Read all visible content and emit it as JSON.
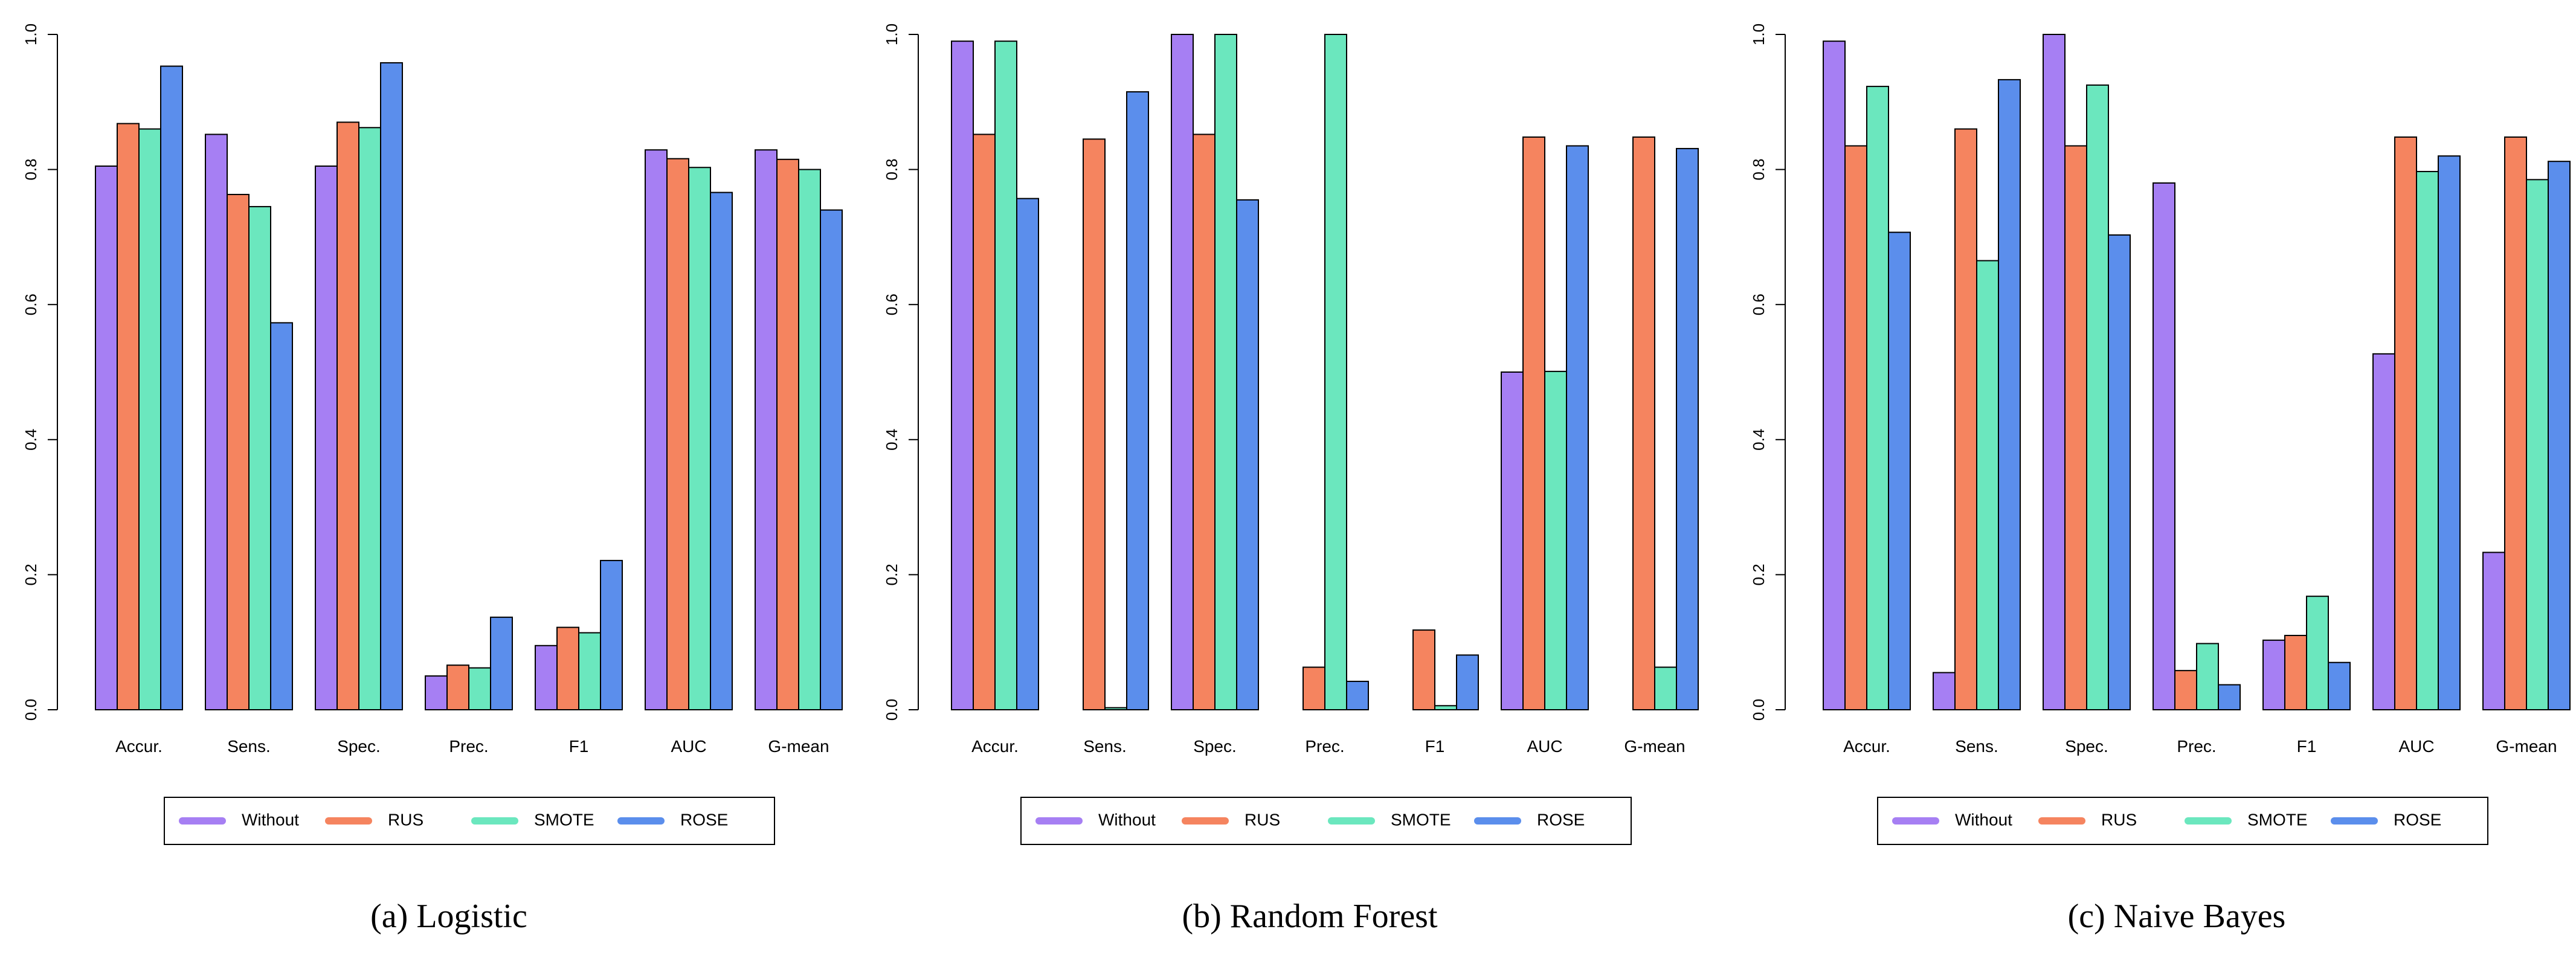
{
  "colors": {
    "Without": "#A67FF3",
    "RUS": "#F5845F",
    "SMOTE": "#6BE7BE",
    "ROSE": "#5B8EEC",
    "axis": "#000000"
  },
  "legend": [
    "Without",
    "RUS",
    "SMOTE",
    "ROSE"
  ],
  "chart_data": [
    {
      "type": "bar",
      "panel": "a",
      "caption_letter": "(a)",
      "caption_text": "Logistic",
      "categories": [
        "Accur.",
        "Sens.",
        "Spec.",
        "Prec.",
        "F1",
        "AUC",
        "G-mean"
      ],
      "ylim": [
        0,
        1
      ],
      "yticks": [
        "0.0",
        "0.2",
        "0.4",
        "0.6",
        "0.8",
        "1.0"
      ],
      "series": [
        {
          "name": "Without",
          "values": [
            0.805,
            0.852,
            0.805,
            0.05,
            0.095,
            0.829,
            0.829
          ]
        },
        {
          "name": "RUS",
          "values": [
            0.868,
            0.763,
            0.87,
            0.066,
            0.122,
            0.816,
            0.815
          ]
        },
        {
          "name": "SMOTE",
          "values": [
            0.86,
            0.745,
            0.862,
            0.062,
            0.114,
            0.803,
            0.8
          ]
        },
        {
          "name": "ROSE",
          "values": [
            0.953,
            0.573,
            0.958,
            0.137,
            0.221,
            0.766,
            0.74
          ]
        }
      ],
      "legend_position": "bottom"
    },
    {
      "type": "bar",
      "panel": "b",
      "caption_letter": "(b)",
      "caption_text": "Random Forest",
      "categories": [
        "Accur.",
        "Sens.",
        "Spec.",
        "Prec.",
        "F1",
        "AUC",
        "G-mean"
      ],
      "ylim": [
        0,
        1
      ],
      "yticks": [
        "0.0",
        "0.2",
        "0.4",
        "0.6",
        "0.8",
        "1.0"
      ],
      "series": [
        {
          "name": "Without",
          "values": [
            0.99,
            0.0,
            1.0,
            0.0,
            0.0,
            0.5,
            0.0
          ]
        },
        {
          "name": "RUS",
          "values": [
            0.852,
            0.845,
            0.852,
            0.063,
            0.118,
            0.848,
            0.848
          ]
        },
        {
          "name": "SMOTE",
          "values": [
            0.99,
            0.003,
            1.0,
            1.0,
            0.006,
            0.501,
            0.063
          ]
        },
        {
          "name": "ROSE",
          "values": [
            0.757,
            0.915,
            0.755,
            0.042,
            0.081,
            0.835,
            0.831
          ]
        }
      ],
      "legend_position": "bottom"
    },
    {
      "type": "bar",
      "panel": "c",
      "caption_letter": "(c)",
      "caption_text": "Naive Bayes",
      "categories": [
        "Accur.",
        "Sens.",
        "Spec.",
        "Prec.",
        "F1",
        "AUC",
        "G-mean"
      ],
      "ylim": [
        0,
        1
      ],
      "yticks": [
        "0.0",
        "0.2",
        "0.4",
        "0.6",
        "0.8",
        "1.0"
      ],
      "series": [
        {
          "name": "Without",
          "values": [
            0.99,
            0.055,
            1.0,
            0.78,
            0.103,
            0.527,
            0.233
          ]
        },
        {
          "name": "RUS",
          "values": [
            0.835,
            0.86,
            0.835,
            0.058,
            0.11,
            0.848,
            0.848
          ]
        },
        {
          "name": "SMOTE",
          "values": [
            0.923,
            0.665,
            0.925,
            0.098,
            0.168,
            0.797,
            0.785
          ]
        },
        {
          "name": "ROSE",
          "values": [
            0.707,
            0.933,
            0.703,
            0.037,
            0.07,
            0.82,
            0.812
          ]
        }
      ],
      "legend_position": "bottom"
    }
  ]
}
